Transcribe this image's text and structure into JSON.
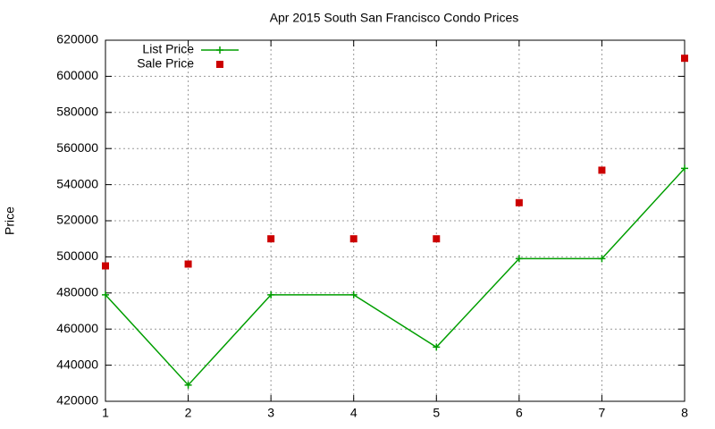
{
  "chart_data": {
    "type": "line",
    "title": "Apr 2015 South San Francisco Condo Prices",
    "ylabel": "Price",
    "x": [
      1,
      2,
      3,
      4,
      5,
      6,
      7,
      8
    ],
    "series": [
      {
        "name": "List Price",
        "color": "#009e00",
        "style": "linespoints",
        "values": [
          479000,
          429000,
          479000,
          479000,
          450000,
          499000,
          499000,
          549000
        ]
      },
      {
        "name": "Sale Price",
        "color": "#cc0000",
        "style": "points",
        "values": [
          495000,
          496000,
          510000,
          510000,
          510000,
          530000,
          548000,
          610000
        ]
      }
    ],
    "xlim": [
      1,
      8
    ],
    "xticks": [
      1,
      2,
      3,
      4,
      5,
      6,
      7,
      8
    ],
    "ylim": [
      420000,
      620000
    ],
    "yticks": [
      420000,
      440000,
      460000,
      480000,
      500000,
      520000,
      540000,
      560000,
      580000,
      600000,
      620000
    ],
    "grid": true,
    "legend": "top-left"
  }
}
